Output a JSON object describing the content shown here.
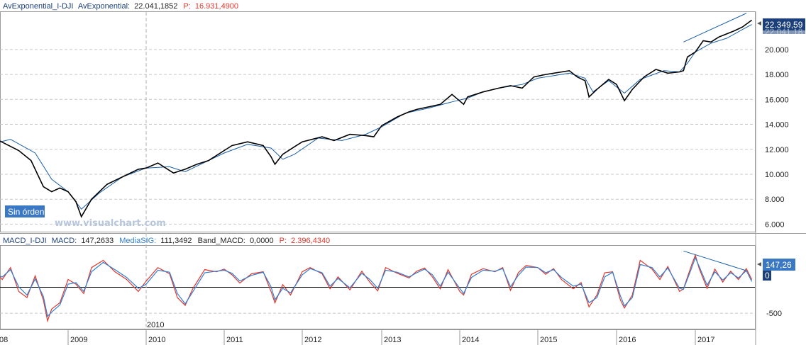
{
  "top_panel": {
    "header": {
      "name": "AvExponential_I-DJI",
      "ind_label": "AvExponential:",
      "ind_value": "22.041,1852",
      "p_label": "P:",
      "p_value": "16.931,4900"
    },
    "last_price_badge": "22.349,59",
    "badge_under": "22.041,18",
    "no_orders_label": "Sin órdenes",
    "watermark": "www.visualchart.com"
  },
  "bottom_panel": {
    "header": {
      "name": "MACD_I-DJI",
      "macd_label": "MACD:",
      "macd_value": "147,2633",
      "sig_label": "MediaSIG:",
      "sig_value": "111,3492",
      "band_label": "Band_MACD:",
      "band_value": "0,0000",
      "p_label": "P:",
      "p_value": "2.396,4340"
    },
    "value_badge": "147,26",
    "zero_badge": "0",
    "bar_label": "2010"
  },
  "colors": {
    "price": "#000000",
    "average": "#1a5fa8",
    "macd": "#e0362c",
    "signal": "#2f7fd3",
    "badge_bg": "#1b3f7a",
    "badge_blue": "#3b78c4",
    "negative_text": "#e0362c"
  },
  "chart_data": [
    {
      "type": "line",
      "title": "",
      "series": [
        {
          "name": "AvExponential_I-DJI",
          "role": "average",
          "x": [
            2008.0,
            2008.3,
            2008.6,
            2008.8,
            2009.0,
            2009.17,
            2009.4,
            2009.7,
            2010.0,
            2010.3,
            2010.5,
            2010.8,
            2011.0,
            2011.3,
            2011.6,
            2011.75,
            2011.9,
            2012.2,
            2012.5,
            2012.8,
            2013.0,
            2013.3,
            2013.6,
            2013.9,
            2014.1,
            2014.3,
            2014.5,
            2014.8,
            2015.0,
            2015.4,
            2015.6,
            2015.7,
            2015.9,
            2016.1,
            2016.3,
            2016.6,
            2016.8,
            2016.9,
            2017.0,
            2017.2,
            2017.4,
            2017.6,
            2017.72
          ],
          "y": [
            12.3,
            12.8,
            11.7,
            9.6,
            8.6,
            7.2,
            8.5,
            9.8,
            10.5,
            10.6,
            10.2,
            11.1,
            11.7,
            12.4,
            12.1,
            11.2,
            11.6,
            12.9,
            12.7,
            13.2,
            13.8,
            14.9,
            15.3,
            15.8,
            16.1,
            16.6,
            16.9,
            17.2,
            17.7,
            18.1,
            17.7,
            16.6,
            17.5,
            16.5,
            17.6,
            18.3,
            18.2,
            18.9,
            19.8,
            20.5,
            20.9,
            21.6,
            22.0
          ]
        },
        {
          "name": "I-DJI",
          "role": "price",
          "x": [
            2008.0,
            2008.1,
            2008.25,
            2008.4,
            2008.55,
            2008.7,
            2008.8,
            2008.9,
            2009.0,
            2009.1,
            2009.17,
            2009.3,
            2009.5,
            2009.7,
            2009.9,
            2010.0,
            2010.15,
            2010.35,
            2010.5,
            2010.65,
            2010.8,
            2011.0,
            2011.1,
            2011.3,
            2011.5,
            2011.6,
            2011.65,
            2011.75,
            2011.9,
            2012.0,
            2012.25,
            2012.4,
            2012.6,
            2012.8,
            2012.9,
            2013.0,
            2013.2,
            2013.35,
            2013.45,
            2013.6,
            2013.75,
            2013.9,
            2014.05,
            2014.1,
            2014.3,
            2014.5,
            2014.65,
            2014.8,
            2014.95,
            2015.1,
            2015.4,
            2015.5,
            2015.6,
            2015.65,
            2015.75,
            2015.9,
            2016.0,
            2016.1,
            2016.2,
            2016.35,
            2016.5,
            2016.65,
            2016.8,
            2016.85,
            2016.9,
            2017.0,
            2017.1,
            2017.2,
            2017.3,
            2017.5,
            2017.6,
            2017.72
          ],
          "y": [
            12.3,
            12.9,
            12.4,
            11.9,
            11.1,
            9.0,
            8.6,
            8.9,
            8.6,
            7.8,
            6.6,
            8.0,
            9.2,
            9.8,
            10.4,
            10.5,
            10.9,
            10.1,
            10.4,
            10.8,
            11.1,
            11.9,
            12.3,
            12.6,
            12.3,
            11.4,
            10.8,
            11.6,
            12.2,
            12.6,
            13.0,
            12.7,
            13.2,
            13.1,
            13.0,
            13.9,
            14.6,
            15.0,
            15.2,
            15.4,
            15.6,
            16.4,
            15.6,
            16.2,
            16.6,
            16.9,
            17.1,
            16.9,
            17.8,
            18.0,
            18.3,
            17.8,
            17.5,
            16.2,
            16.8,
            17.6,
            17.2,
            15.9,
            16.8,
            17.8,
            18.4,
            18.1,
            18.2,
            18.3,
            19.4,
            19.8,
            20.7,
            20.6,
            21.0,
            21.5,
            21.8,
            22.35
          ]
        }
      ],
      "y_ticks": [
        "6.000",
        "8.000",
        "10.000",
        "12.000",
        "14.000",
        "16.000",
        "18.000",
        "20.000"
      ],
      "ylim": [
        5.4,
        23.0
      ],
      "trendline": {
        "x": [
          2016.85,
          2017.65
        ],
        "y": [
          20.6,
          22.9
        ]
      }
    },
    {
      "type": "line",
      "title": "",
      "series": [
        {
          "name": "MACD",
          "role": "macd",
          "x": [
            2008.0,
            2008.1,
            2008.2,
            2008.3,
            2008.4,
            2008.5,
            2008.6,
            2008.7,
            2008.75,
            2008.8,
            2008.9,
            2009.0,
            2009.1,
            2009.2,
            2009.3,
            2009.45,
            2009.6,
            2009.75,
            2009.9,
            2010.0,
            2010.15,
            2010.3,
            2010.4,
            2010.5,
            2010.6,
            2010.75,
            2010.9,
            2011.0,
            2011.1,
            2011.2,
            2011.35,
            2011.5,
            2011.6,
            2011.65,
            2011.75,
            2011.85,
            2012.0,
            2012.1,
            2012.25,
            2012.35,
            2012.45,
            2012.6,
            2012.75,
            2012.85,
            2012.95,
            2013.05,
            2013.2,
            2013.35,
            2013.45,
            2013.55,
            2013.65,
            2013.75,
            2013.85,
            2014.0,
            2014.05,
            2014.15,
            2014.3,
            2014.45,
            2014.55,
            2014.65,
            2014.75,
            2014.85,
            2015.0,
            2015.1,
            2015.2,
            2015.3,
            2015.45,
            2015.55,
            2015.65,
            2015.75,
            2015.85,
            2015.95,
            2016.05,
            2016.1,
            2016.2,
            2016.3,
            2016.45,
            2016.55,
            2016.65,
            2016.8,
            2016.85,
            2016.95,
            2017.0,
            2017.05,
            2017.15,
            2017.25,
            2017.35,
            2017.45,
            2017.55,
            2017.65,
            2017.72
          ],
          "y": [
            -60,
            320,
            150,
            380,
            -80,
            -200,
            220,
            -250,
            -650,
            -420,
            -300,
            150,
            60,
            -120,
            380,
            520,
            300,
            150,
            -80,
            120,
            380,
            260,
            -200,
            -350,
            -20,
            340,
            300,
            350,
            240,
            80,
            260,
            300,
            -80,
            -300,
            50,
            -150,
            300,
            380,
            260,
            -30,
            200,
            -50,
            310,
            100,
            -70,
            380,
            270,
            180,
            310,
            370,
            200,
            -30,
            340,
            -80,
            -150,
            250,
            360,
            300,
            380,
            -60,
            280,
            420,
            380,
            250,
            360,
            150,
            -30,
            90,
            -380,
            -150,
            280,
            300,
            -250,
            -400,
            -150,
            520,
            350,
            150,
            400,
            -80,
            -30,
            420,
            620,
            360,
            -20,
            350,
            100,
            310,
            150,
            360,
            147
          ]
        },
        {
          "name": "MediaSIG",
          "role": "signal",
          "x": [
            2008.0,
            2008.1,
            2008.2,
            2008.3,
            2008.4,
            2008.5,
            2008.6,
            2008.7,
            2008.75,
            2008.8,
            2008.9,
            2009.0,
            2009.1,
            2009.2,
            2009.3,
            2009.45,
            2009.6,
            2009.75,
            2009.9,
            2010.0,
            2010.15,
            2010.3,
            2010.4,
            2010.5,
            2010.6,
            2010.75,
            2010.9,
            2011.0,
            2011.1,
            2011.2,
            2011.35,
            2011.5,
            2011.6,
            2011.65,
            2011.75,
            2011.85,
            2012.0,
            2012.1,
            2012.25,
            2012.35,
            2012.45,
            2012.6,
            2012.75,
            2012.85,
            2012.95,
            2013.05,
            2013.2,
            2013.35,
            2013.45,
            2013.55,
            2013.65,
            2013.75,
            2013.85,
            2014.0,
            2014.05,
            2014.15,
            2014.3,
            2014.45,
            2014.55,
            2014.65,
            2014.75,
            2014.85,
            2015.0,
            2015.1,
            2015.2,
            2015.3,
            2015.45,
            2015.55,
            2015.65,
            2015.75,
            2015.85,
            2015.95,
            2016.05,
            2016.1,
            2016.2,
            2016.3,
            2016.45,
            2016.55,
            2016.65,
            2016.8,
            2016.85,
            2016.95,
            2017.0,
            2017.05,
            2017.15,
            2017.25,
            2017.35,
            2017.45,
            2017.55,
            2017.65,
            2017.72
          ],
          "y": [
            -40,
            250,
            200,
            340,
            10,
            -150,
            160,
            -180,
            -560,
            -480,
            -340,
            60,
            90,
            -80,
            300,
            480,
            340,
            190,
            -20,
            60,
            330,
            290,
            -120,
            -320,
            -80,
            280,
            310,
            330,
            270,
            120,
            230,
            290,
            10,
            -240,
            -20,
            -110,
            240,
            360,
            280,
            20,
            170,
            -10,
            270,
            150,
            -20,
            330,
            290,
            200,
            280,
            350,
            240,
            20,
            290,
            -20,
            -120,
            190,
            330,
            310,
            360,
            10,
            230,
            390,
            380,
            280,
            340,
            190,
            20,
            60,
            -300,
            -200,
            200,
            290,
            -170,
            -360,
            -200,
            440,
            380,
            200,
            370,
            -20,
            -40,
            360,
            570,
            400,
            40,
            300,
            140,
            280,
            180,
            320,
            111
          ]
        }
      ],
      "y_ticks": [
        "-500",
        "0"
      ],
      "reference_line": 0,
      "ylim": [
        -800,
        800
      ],
      "trendline": {
        "x": [
          2016.85,
          2017.65
        ],
        "y": [
          700,
          320
        ]
      }
    }
  ],
  "x_axis_labels": [
    "08",
    "2009",
    "2010",
    "2011",
    "2012",
    "2013",
    "2014",
    "2015",
    "2016",
    "2017"
  ]
}
